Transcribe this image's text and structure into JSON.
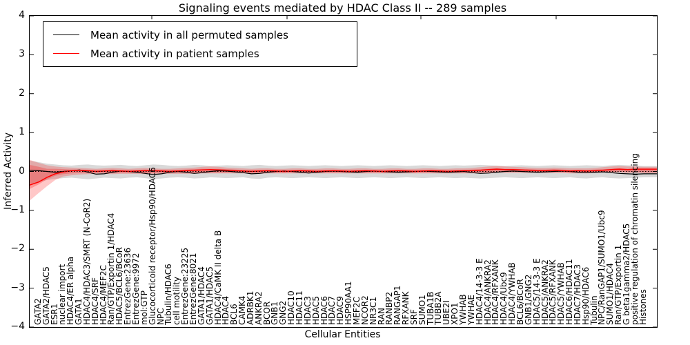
{
  "title": "Signaling events mediated by HDAC Class II -- 289 samples",
  "axes": {
    "ylabel": "Inferred Activity",
    "xlabel": "Cellular Entities",
    "ytick_labels": [
      "4",
      "3",
      "2",
      "1",
      "0",
      "−1",
      "−2",
      "−3",
      "−4"
    ],
    "ytick_values": [
      4,
      3,
      2,
      1,
      0,
      -1,
      -2,
      -3,
      -4
    ]
  },
  "legend": {
    "items": [
      {
        "label": "Mean activity in all permuted samples",
        "color": "#000000"
      },
      {
        "label": "Mean activity in patient samples",
        "color": "#ff0000"
      }
    ]
  },
  "chart_data": {
    "type": "line",
    "title": "Signaling events mediated by HDAC Class II -- 289 samples",
    "xlabel": "Cellular Entities",
    "ylabel": "Inferred Activity",
    "ylim": [
      -4,
      4
    ],
    "grid": false,
    "legend_position": "upper left",
    "zero_reference_line": 0,
    "categories": [
      "GATA2",
      "GATA2/HDAC5",
      "ESR1",
      "nuclear import",
      "HDAC4/ER alpha",
      "GATA1",
      "HDAC4/HDAC3/SMRT (N-CoR2)",
      "HDAC4/SRF",
      "HDAC4/MEF2C",
      "Ran/GTP/Exportin 1/HDAC4",
      "HDAC5/BCL6/BCoR",
      "EntrezGene:23636",
      "EntrezGene:9972",
      "mol:GTP",
      "Glucocorticoid receptor/Hsp90/HDAC6",
      "NPC",
      "Tubulin/HDAC6",
      "cell motility",
      "EntrezGene:23225",
      "EntrezGene:8021",
      "GATA1/HDAC4",
      "GATA1/HDAC5",
      "HDAC4/CaMK II delta B",
      "HDAC4",
      "BCL6",
      "CAMK4",
      "ADRBK1",
      "ANKRA2",
      "BCOR",
      "GNB1",
      "GNG2",
      "HDAC10",
      "HDAC11",
      "HDAC3",
      "HDAC5",
      "HDAC6",
      "HDAC7",
      "HDAC9",
      "HSP90AA1",
      "MEF2C",
      "NCOR2",
      "NR3C1",
      "RAN",
      "RANBP2",
      "RANGAP1",
      "RFXANK",
      "SRF",
      "SUMO1",
      "TUBA1B",
      "TUBB2A",
      "UBE2I",
      "XPO1",
      "YWHAB",
      "YWHAE",
      "HDAC4/14-3-3 E",
      "HDAC4/ANKRA2",
      "HDAC4/RFXANK",
      "HDAC4/Ubc9",
      "HDAC4/YWHAB",
      "BCL6/BCoR",
      "GNB1/GNG2",
      "HDAC5/14-3-3 E",
      "HDAC5/ANKRA2",
      "HDAC5/RFXANK",
      "HDAC5/YWHAB",
      "HDAC6/HDAC11",
      "HDAC7/HDAC3",
      "Hsp90/HDAC6",
      "Tubulin",
      "NPC/RanGAP1/SUMO1/Ubc9",
      "SUMO1/HDAC4",
      "Ran/GTP/Exportin 1",
      "G beta1gamma2/HDAC5",
      "positive regulation of chromatin silencing",
      "Histones"
    ],
    "bands": [
      {
        "name": "permuted-samples-std-band",
        "color": "#000000",
        "opacity": 0.15,
        "left_edge": {
          "upper": 0.28,
          "lower": -0.32
        },
        "right_edge": {
          "upper": 0.14,
          "lower": -0.15
        },
        "upper": [
          0.24,
          0.2,
          0.18,
          0.16,
          0.15,
          0.17,
          0.18,
          0.16,
          0.15,
          0.16,
          0.17,
          0.15,
          0.14,
          0.16,
          0.18,
          0.17,
          0.15,
          0.14,
          0.15,
          0.17,
          0.16,
          0.14,
          0.15,
          0.16,
          0.15,
          0.14,
          0.16,
          0.17,
          0.15,
          0.14,
          0.15,
          0.16,
          0.15,
          0.14,
          0.15,
          0.16,
          0.15,
          0.14,
          0.15,
          0.16,
          0.15,
          0.14,
          0.15,
          0.16,
          0.15,
          0.14,
          0.15,
          0.16,
          0.15,
          0.14,
          0.15,
          0.16,
          0.15,
          0.16,
          0.17,
          0.16,
          0.15,
          0.14,
          0.15,
          0.16,
          0.15,
          0.14,
          0.15,
          0.16,
          0.15,
          0.14,
          0.15,
          0.16,
          0.15,
          0.14,
          0.16,
          0.17,
          0.16,
          0.15,
          0.14
        ],
        "lower": [
          -0.27,
          -0.22,
          -0.19,
          -0.17,
          -0.16,
          -0.18,
          -0.2,
          -0.18,
          -0.16,
          -0.17,
          -0.18,
          -0.16,
          -0.15,
          -0.17,
          -0.2,
          -0.18,
          -0.16,
          -0.15,
          -0.16,
          -0.18,
          -0.17,
          -0.15,
          -0.16,
          -0.17,
          -0.16,
          -0.15,
          -0.18,
          -0.19,
          -0.16,
          -0.15,
          -0.16,
          -0.17,
          -0.16,
          -0.15,
          -0.16,
          -0.17,
          -0.16,
          -0.15,
          -0.16,
          -0.17,
          -0.16,
          -0.15,
          -0.16,
          -0.17,
          -0.16,
          -0.15,
          -0.16,
          -0.17,
          -0.16,
          -0.15,
          -0.16,
          -0.17,
          -0.16,
          -0.17,
          -0.18,
          -0.17,
          -0.16,
          -0.15,
          -0.16,
          -0.17,
          -0.16,
          -0.15,
          -0.16,
          -0.17,
          -0.16,
          -0.15,
          -0.17,
          -0.18,
          -0.16,
          -0.15,
          -0.17,
          -0.18,
          -0.17,
          -0.16,
          -0.15
        ]
      },
      {
        "name": "patient-samples-std-band-outer",
        "color": "#ff0000",
        "opacity": 0.22,
        "left_edge": {
          "upper": 0.3,
          "lower": -0.75
        },
        "right_edge": {
          "upper": 0.12,
          "lower": -0.04
        },
        "upper": [
          0.22,
          0.16,
          0.13,
          0.11,
          0.1,
          0.09,
          0.08,
          0.07,
          0.08,
          0.09,
          0.08,
          0.07,
          0.08,
          0.09,
          0.08,
          0.07,
          0.07,
          0.08,
          0.09,
          0.1,
          0.12,
          0.13,
          0.12,
          0.1,
          0.09,
          0.08,
          0.07,
          0.08,
          0.08,
          0.07,
          0.07,
          0.08,
          0.08,
          0.07,
          0.07,
          0.08,
          0.08,
          0.07,
          0.07,
          0.08,
          0.08,
          0.07,
          0.07,
          0.08,
          0.08,
          0.07,
          0.07,
          0.08,
          0.08,
          0.07,
          0.07,
          0.08,
          0.08,
          0.09,
          0.11,
          0.13,
          0.14,
          0.13,
          0.12,
          0.11,
          0.1,
          0.09,
          0.09,
          0.1,
          0.09,
          0.08,
          0.08,
          0.08,
          0.09,
          0.11,
          0.13,
          0.14,
          0.13,
          0.13,
          0.12
        ],
        "lower": [
          -0.55,
          -0.38,
          -0.22,
          -0.13,
          -0.1,
          -0.08,
          -0.07,
          -0.06,
          -0.06,
          -0.07,
          -0.06,
          -0.06,
          -0.06,
          -0.07,
          -0.07,
          -0.06,
          -0.06,
          -0.06,
          -0.06,
          -0.06,
          -0.05,
          -0.05,
          -0.05,
          -0.05,
          -0.05,
          -0.05,
          -0.06,
          -0.06,
          -0.05,
          -0.05,
          -0.05,
          -0.05,
          -0.05,
          -0.05,
          -0.05,
          -0.05,
          -0.05,
          -0.05,
          -0.05,
          -0.05,
          -0.05,
          -0.05,
          -0.05,
          -0.05,
          -0.05,
          -0.05,
          -0.05,
          -0.05,
          -0.05,
          -0.05,
          -0.05,
          -0.05,
          -0.05,
          -0.05,
          -0.04,
          -0.03,
          -0.03,
          -0.03,
          -0.03,
          -0.03,
          -0.04,
          -0.04,
          -0.04,
          -0.04,
          -0.04,
          -0.05,
          -0.05,
          -0.05,
          -0.04,
          -0.03,
          -0.02,
          -0.02,
          -0.03,
          -0.03,
          -0.04
        ]
      },
      {
        "name": "patient-samples-std-band-inner",
        "color": "#ff0000",
        "opacity": 0.25,
        "left_edge": {
          "upper": 0.17,
          "lower": -0.45
        },
        "right_edge": {
          "upper": 0.07,
          "lower": -0.02
        },
        "upper": [
          0.12,
          0.07,
          0.07,
          0.06,
          0.05,
          0.05,
          0.04,
          0.04,
          0.04,
          0.05,
          0.04,
          0.04,
          0.04,
          0.05,
          0.04,
          0.04,
          0.04,
          0.04,
          0.05,
          0.06,
          0.07,
          0.07,
          0.07,
          0.06,
          0.05,
          0.04,
          0.04,
          0.04,
          0.04,
          0.04,
          0.04,
          0.04,
          0.04,
          0.04,
          0.04,
          0.04,
          0.04,
          0.04,
          0.04,
          0.04,
          0.04,
          0.04,
          0.04,
          0.04,
          0.04,
          0.04,
          0.04,
          0.04,
          0.04,
          0.04,
          0.04,
          0.04,
          0.04,
          0.05,
          0.06,
          0.07,
          0.08,
          0.07,
          0.07,
          0.06,
          0.06,
          0.05,
          0.05,
          0.06,
          0.05,
          0.04,
          0.04,
          0.04,
          0.05,
          0.06,
          0.07,
          0.08,
          0.07,
          0.07,
          0.07
        ],
        "lower": [
          -0.33,
          -0.2,
          -0.11,
          -0.07,
          -0.05,
          -0.04,
          -0.04,
          -0.03,
          -0.03,
          -0.04,
          -0.03,
          -0.03,
          -0.03,
          -0.04,
          -0.04,
          -0.03,
          -0.03,
          -0.03,
          -0.03,
          -0.03,
          -0.03,
          -0.03,
          -0.03,
          -0.03,
          -0.03,
          -0.03,
          -0.03,
          -0.03,
          -0.03,
          -0.03,
          -0.03,
          -0.03,
          -0.03,
          -0.03,
          -0.03,
          -0.03,
          -0.03,
          -0.03,
          -0.03,
          -0.03,
          -0.03,
          -0.03,
          -0.03,
          -0.03,
          -0.03,
          -0.03,
          -0.03,
          -0.03,
          -0.03,
          -0.03,
          -0.03,
          -0.03,
          -0.03,
          -0.03,
          -0.02,
          -0.02,
          -0.02,
          -0.02,
          -0.02,
          -0.02,
          -0.02,
          -0.02,
          -0.02,
          -0.02,
          -0.02,
          -0.03,
          -0.03,
          -0.03,
          -0.02,
          -0.02,
          -0.01,
          -0.01,
          -0.02,
          -0.02,
          -0.02
        ]
      }
    ],
    "series": [
      {
        "name": "Mean activity in all permuted samples",
        "color": "#000000",
        "width": 1.2,
        "left_edge": 0.03,
        "right_edge": -0.06,
        "values": [
          0.02,
          0.0,
          -0.02,
          0.0,
          0.02,
          0.04,
          -0.02,
          -0.07,
          -0.06,
          -0.02,
          0.01,
          0.0,
          -0.02,
          -0.05,
          -0.08,
          -0.06,
          -0.02,
          0.0,
          -0.02,
          -0.05,
          -0.03,
          0.0,
          0.02,
          0.01,
          -0.01,
          -0.03,
          -0.06,
          -0.05,
          -0.02,
          0.0,
          0.01,
          0.0,
          -0.02,
          -0.04,
          -0.02,
          0.0,
          0.01,
          0.0,
          -0.01,
          -0.02,
          0.0,
          0.01,
          0.0,
          -0.01,
          -0.02,
          -0.01,
          0.0,
          0.01,
          0.0,
          -0.01,
          -0.02,
          -0.01,
          0.0,
          -0.03,
          -0.05,
          -0.04,
          -0.02,
          0.0,
          0.01,
          0.0,
          -0.01,
          -0.02,
          -0.01,
          0.0,
          0.01,
          0.0,
          -0.02,
          -0.03,
          -0.02,
          -0.01,
          -0.03,
          -0.05,
          -0.06,
          -0.07,
          -0.06
        ]
      },
      {
        "name": "Mean activity in patient samples",
        "color": "#ff0000",
        "width": 1.5,
        "left_edge": -0.35,
        "right_edge": 0.06,
        "values": [
          -0.27,
          -0.15,
          -0.06,
          -0.01,
          0.02,
          0.03,
          0.02,
          0.0,
          0.01,
          0.02,
          0.01,
          0.0,
          0.01,
          0.02,
          0.02,
          0.01,
          0.0,
          0.01,
          0.02,
          0.03,
          0.04,
          0.05,
          0.04,
          0.03,
          0.02,
          0.01,
          0.0,
          0.01,
          0.02,
          0.01,
          0.0,
          0.01,
          0.02,
          0.01,
          0.0,
          0.01,
          0.02,
          0.01,
          0.0,
          0.01,
          0.02,
          0.01,
          0.0,
          0.01,
          0.02,
          0.01,
          0.0,
          0.01,
          0.02,
          0.01,
          0.0,
          0.01,
          0.02,
          0.02,
          0.03,
          0.05,
          0.06,
          0.05,
          0.05,
          0.04,
          0.03,
          0.02,
          0.02,
          0.03,
          0.02,
          0.01,
          0.02,
          0.01,
          0.02,
          0.03,
          0.05,
          0.06,
          0.05,
          0.06,
          0.06
        ]
      }
    ]
  }
}
